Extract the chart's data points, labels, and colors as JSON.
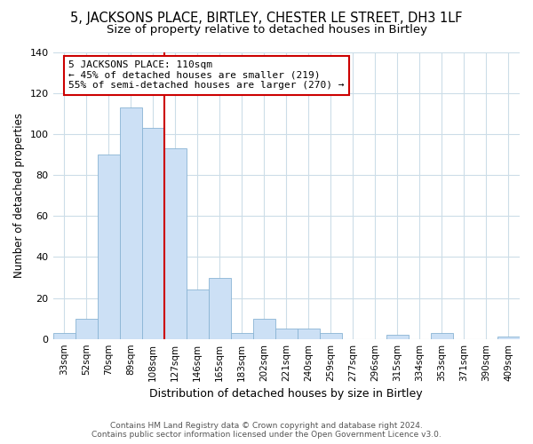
{
  "title": "5, JACKSONS PLACE, BIRTLEY, CHESTER LE STREET, DH3 1LF",
  "subtitle": "Size of property relative to detached houses in Birtley",
  "xlabel": "Distribution of detached houses by size in Birtley",
  "ylabel": "Number of detached properties",
  "bar_labels": [
    "33sqm",
    "52sqm",
    "70sqm",
    "89sqm",
    "108sqm",
    "127sqm",
    "146sqm",
    "165sqm",
    "183sqm",
    "202sqm",
    "221sqm",
    "240sqm",
    "259sqm",
    "277sqm",
    "296sqm",
    "315sqm",
    "334sqm",
    "353sqm",
    "371sqm",
    "390sqm",
    "409sqm"
  ],
  "bar_values": [
    3,
    10,
    90,
    113,
    103,
    93,
    24,
    30,
    3,
    10,
    5,
    5,
    3,
    0,
    0,
    2,
    0,
    3,
    0,
    0,
    1
  ],
  "bar_color": "#cce0f5",
  "bar_edge_color": "#8ab4d4",
  "vline_index": 4,
  "vline_color": "#cc0000",
  "annotation_title": "5 JACKSONS PLACE: 110sqm",
  "annotation_line1": "← 45% of detached houses are smaller (219)",
  "annotation_line2": "55% of semi-detached houses are larger (270) →",
  "annotation_box_color": "#ffffff",
  "annotation_box_edge": "#cc0000",
  "ylim": [
    0,
    140
  ],
  "yticks": [
    0,
    20,
    40,
    60,
    80,
    100,
    120,
    140
  ],
  "footer1": "Contains HM Land Registry data © Crown copyright and database right 2024.",
  "footer2": "Contains public sector information licensed under the Open Government Licence v3.0.",
  "background_color": "#ffffff",
  "grid_color": "#ccdde8",
  "title_fontsize": 10.5,
  "subtitle_fontsize": 9.5,
  "xlabel_fontsize": 9,
  "ylabel_fontsize": 8.5
}
